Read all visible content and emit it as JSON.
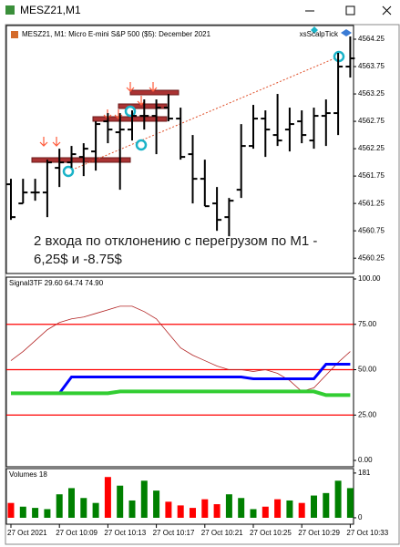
{
  "window": {
    "title": "MESZ21,M1"
  },
  "annotation": [
    "2 входа по отклонению с перегрузом по M1 -",
    "6,25$ и -8.75$"
  ],
  "chart_data": [
    {
      "type": "ohlc",
      "title": "MESZ21, M1:  Micro E-mini S&P 500 ($5): December 2021",
      "indicator_label": "xsScalpTick",
      "categories": [
        "27 Oct 2021",
        null,
        null,
        null,
        "27 Oct 10:09",
        null,
        null,
        null,
        "27 Oct 10:13",
        null,
        null,
        null,
        "27 Oct 10:17",
        null,
        null,
        null,
        "27 Oct 10:21",
        null,
        null,
        null,
        "27 Oct 10:25",
        null,
        null,
        null,
        "27 Oct 10:29",
        null,
        null,
        null,
        "27 Oct 10:33"
      ],
      "open": [
        4561.6,
        4561.25,
        4561.45,
        4561.45,
        4561.9,
        4562.0,
        4562.1,
        4562.2,
        4562.75,
        4562.55,
        4562.6,
        4562.85,
        4562.85,
        4563.0,
        4562.8,
        4562.15,
        4561.7,
        4561.25,
        4561.0,
        4561.5,
        4562.3,
        4562.8,
        4562.5,
        4562.6,
        4562.75,
        4562.4,
        4562.85,
        4562.9,
        4563.75
      ],
      "high": [
        4561.7,
        4561.7,
        4561.7,
        4562.05,
        4562.25,
        4562.3,
        4562.35,
        4562.75,
        4562.9,
        4562.9,
        4562.95,
        4563.15,
        4563.15,
        4563.25,
        4563.0,
        4562.5,
        4562.05,
        4561.55,
        4561.35,
        4562.7,
        4563.05,
        4562.95,
        4563.25,
        4563.0,
        4562.95,
        4563.0,
        4563.15,
        4564.0,
        4564.3
      ],
      "low": [
        4560.95,
        4561.25,
        4561.3,
        4561.0,
        4561.55,
        4561.9,
        4561.75,
        4561.85,
        4562.35,
        4561.5,
        4562.4,
        4562.6,
        4562.15,
        4562.75,
        4562.05,
        4561.25,
        4561.2,
        4560.75,
        4560.65,
        4561.35,
        4562.25,
        4562.1,
        4562.3,
        4562.2,
        4562.35,
        4562.25,
        4562.3,
        4562.5,
        4563.55
      ],
      "close": [
        4561.0,
        4561.45,
        4561.45,
        4562.0,
        4562.0,
        4562.15,
        4562.25,
        4562.7,
        4562.6,
        4562.6,
        4562.85,
        4562.85,
        4563.0,
        4562.8,
        4562.1,
        4561.7,
        4561.2,
        4560.95,
        4561.3,
        4562.3,
        4562.8,
        4562.6,
        4562.4,
        4562.7,
        4562.5,
        4562.85,
        4562.9,
        4563.75,
        4563.9
      ],
      "color": "#000000",
      "ylim": [
        4559.97,
        4564.5
      ],
      "yticks": [
        4564.25,
        4563.75,
        4563.25,
        4562.75,
        4562.25,
        4561.75,
        4561.25,
        4560.75,
        4560.25
      ]
    },
    {
      "type": "line",
      "title": "Signal3TF 29.60 64.74 74.90",
      "series": [
        {
          "color": "#b22222",
          "width": 0.8,
          "values": [
            55,
            60,
            66,
            72,
            76,
            78,
            79,
            81,
            83,
            85,
            85,
            82,
            78,
            70,
            62,
            58,
            55,
            52,
            50,
            50,
            49,
            50,
            48,
            44,
            38,
            40,
            47,
            54,
            60
          ]
        },
        {
          "color": "#0000ff",
          "width": 3,
          "values": [
            37,
            37,
            37,
            37,
            37,
            46,
            46,
            46,
            46,
            46,
            46,
            46,
            46,
            46,
            46,
            46,
            46,
            46,
            46,
            46,
            45,
            45,
            45,
            45,
            45,
            45,
            53,
            53,
            53
          ]
        },
        {
          "color": "#32cd32",
          "width": 4,
          "values": [
            37,
            37,
            37,
            37,
            37,
            37,
            37,
            37,
            37,
            38,
            38,
            38,
            38,
            38,
            38,
            38,
            38,
            38,
            38,
            38,
            38,
            38,
            38,
            38,
            38,
            38,
            36,
            36,
            36
          ]
        }
      ],
      "levels": [
        75,
        50,
        25
      ],
      "level_color": "#ff0000",
      "ylim": [
        -3.5,
        101
      ],
      "yticks": [
        {
          "value": 100,
          "label": "100.00"
        },
        {
          "value": 75,
          "label": "75.00"
        },
        {
          "value": 50,
          "label": "50.00"
        },
        {
          "value": 25,
          "label": "25.00"
        },
        {
          "value": 0,
          "label": "0.00"
        }
      ]
    },
    {
      "type": "bar",
      "title": "Volumes 18",
      "values": [
        60,
        45,
        40,
        35,
        95,
        120,
        80,
        60,
        165,
        130,
        70,
        150,
        110,
        65,
        50,
        40,
        75,
        55,
        95,
        80,
        35,
        45,
        75,
        70,
        60,
        90,
        100,
        150,
        120
      ],
      "up_color": "#008000",
      "down_color": "#ff0000",
      "ylim": [
        -26,
        199
      ],
      "yticks": [
        181,
        0
      ]
    }
  ]
}
